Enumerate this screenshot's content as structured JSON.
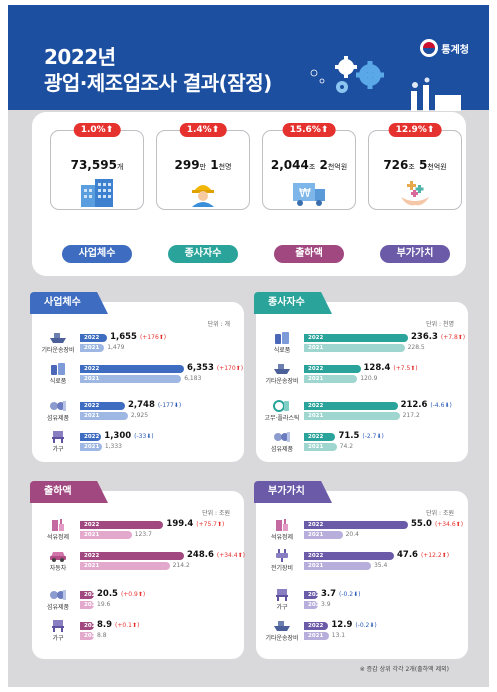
{
  "header": {
    "title_line1": "2022년",
    "title_line2": "광업·제조업조사 결과(잠정)",
    "logo_text": "통계청"
  },
  "summary": [
    {
      "change": "1.0%⬆",
      "value": "73,595",
      "unit": "개",
      "label": "사업체수",
      "color": "#3e6cc0",
      "icon": "building-icon"
    },
    {
      "change": "1.4%⬆",
      "value": "299",
      "unit": "만",
      "value2": "1",
      "unit2": "천명",
      "label": "종사자수",
      "color": "#2aa39a",
      "icon": "worker-icon"
    },
    {
      "change": "15.6%⬆",
      "value": "2,044",
      "unit": "조",
      "value2": "2",
      "unit2": "천억원",
      "label": "출하액",
      "color": "#a0487f",
      "icon": "shipping-truck-icon"
    },
    {
      "change": "12.9%⬆",
      "value": "726",
      "unit": "조",
      "value2": "5",
      "unit2": "천억원",
      "label": "부가가치",
      "color": "#6a5aa8",
      "icon": "value-hands-icon"
    }
  ],
  "panels": [
    {
      "title": "사업체수",
      "unit_note": "단위 : 개",
      "color_2022": "#3e6cc0",
      "color_2021": "#9fb8e3",
      "max": 6353,
      "rows": [
        {
          "category": "기타운송장비",
          "icon": "ship-icon",
          "v2022": 1655,
          "v2022_text": "1,655",
          "change": "(+176⬆)",
          "dir": "up",
          "v2021": 1479,
          "v2021_text": "1,479"
        },
        {
          "category": "식료품",
          "icon": "food-icon",
          "v2022": 6353,
          "v2022_text": "6,353",
          "change": "(+170⬆)",
          "dir": "up",
          "v2021": 6183,
          "v2021_text": "6,183"
        },
        {
          "category": "섬유제품",
          "icon": "textile-icon",
          "v2022": 2748,
          "v2022_text": "2,748",
          "change": "(-177⬇)",
          "dir": "down",
          "v2021": 2925,
          "v2021_text": "2,925"
        },
        {
          "category": "가구",
          "icon": "furniture-icon",
          "v2022": 1300,
          "v2022_text": "1,300",
          "change": "(-33⬇)",
          "dir": "down",
          "v2021": 1333,
          "v2021_text": "1,333"
        }
      ]
    },
    {
      "title": "종사자수",
      "unit_note": "단위 : 천명",
      "color_2022": "#2aa39a",
      "color_2021": "#9fd6d0",
      "max": 236.3,
      "rows": [
        {
          "category": "식료품",
          "icon": "food-icon",
          "v2022": 236.3,
          "v2022_text": "236.3",
          "change": "(+7.8⬆)",
          "dir": "up",
          "v2021": 228.5,
          "v2021_text": "228.5"
        },
        {
          "category": "기타운송장비",
          "icon": "ship-icon",
          "v2022": 128.4,
          "v2022_text": "128.4",
          "change": "(+7.5⬆)",
          "dir": "up",
          "v2021": 120.9,
          "v2021_text": "120.9"
        },
        {
          "category": "고무·플라스틱",
          "icon": "rubber-plastic-icon",
          "v2022": 212.6,
          "v2022_text": "212.6",
          "change": "(-4.6⬇)",
          "dir": "down",
          "v2021": 217.2,
          "v2021_text": "217.2"
        },
        {
          "category": "섬유제품",
          "icon": "textile-icon",
          "v2022": 71.5,
          "v2022_text": "71.5",
          "change": "(-2.7⬇)",
          "dir": "down",
          "v2021": 74.2,
          "v2021_text": "74.2"
        }
      ]
    },
    {
      "title": "출하액",
      "unit_note": "단위 : 조원",
      "color_2022": "#a0487f",
      "color_2021": "#e3a9cd",
      "max": 248.6,
      "rows": [
        {
          "category": "석유정제",
          "icon": "oil-refinery-icon",
          "v2022": 199.4,
          "v2022_text": "199.4",
          "change": "(+75.7⬆)",
          "dir": "up",
          "v2021": 123.7,
          "v2021_text": "123.7"
        },
        {
          "category": "자동차",
          "icon": "car-icon",
          "v2022": 248.6,
          "v2022_text": "248.6",
          "change": "(+34.4⬆)",
          "dir": "up",
          "v2021": 214.2,
          "v2021_text": "214.2"
        },
        {
          "category": "섬유제품",
          "icon": "textile-icon",
          "v2022": 20.5,
          "v2022_text": "20.5",
          "change": "(+0.9⬆)",
          "dir": "up",
          "v2021": 19.6,
          "v2021_text": "19.6"
        },
        {
          "category": "가구",
          "icon": "furniture-icon",
          "v2022": 8.9,
          "v2022_text": "8.9",
          "change": "(+0.1⬆)",
          "dir": "up",
          "v2021": 8.8,
          "v2021_text": "8.8"
        }
      ]
    },
    {
      "title": "부가가치",
      "unit_note": "단위 : 조원",
      "color_2022": "#6a5aa8",
      "color_2021": "#b7aedb",
      "max": 55.0,
      "rows": [
        {
          "category": "석유정제",
          "icon": "oil-refinery-icon",
          "v2022": 55.0,
          "v2022_text": "55.0",
          "change": "(+34.6⬆)",
          "dir": "up",
          "v2021": 20.4,
          "v2021_text": "20.4"
        },
        {
          "category": "전기장비",
          "icon": "electric-plug-icon",
          "v2022": 47.6,
          "v2022_text": "47.6",
          "change": "(+12.2⬆)",
          "dir": "up",
          "v2021": 35.4,
          "v2021_text": "35.4"
        },
        {
          "category": "가구",
          "icon": "furniture-icon",
          "v2022": 3.7,
          "v2022_text": "3.7",
          "change": "(-0.2⬇)",
          "dir": "down",
          "v2021": 3.9,
          "v2021_text": "3.9"
        },
        {
          "category": "기타운송장비",
          "icon": "ship-icon",
          "v2022": 12.9,
          "v2022_text": "12.9",
          "change": "(-0.2⬇)",
          "dir": "down",
          "v2021": 13.1,
          "v2021_text": "13.1"
        }
      ]
    }
  ],
  "year_2022": "2022",
  "year_2021": "2021",
  "footnote": "※ 증감 상위 각각 2개(출하액 제외)"
}
